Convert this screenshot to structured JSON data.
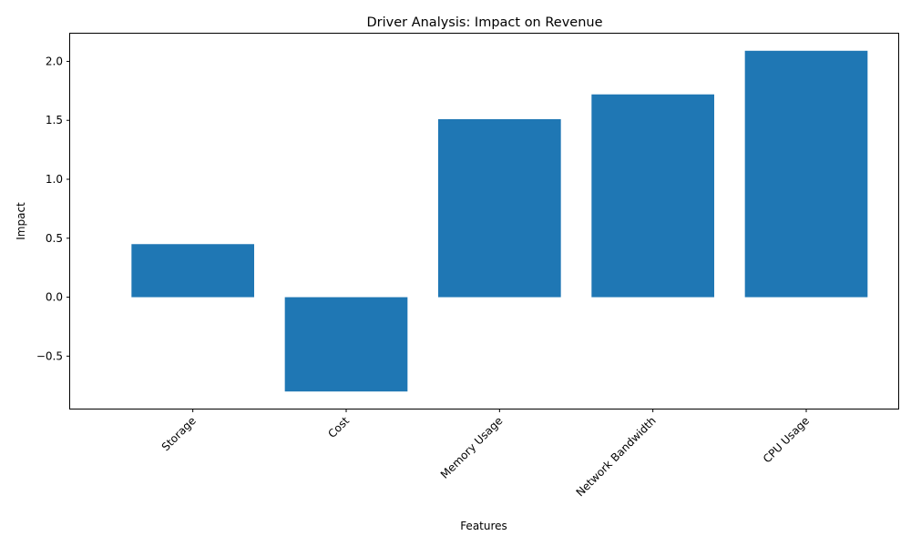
{
  "chart_data": {
    "type": "bar",
    "title": "Driver Analysis: Impact on Revenue",
    "xlabel": "Features",
    "ylabel": "Impact",
    "categories": [
      "Storage",
      "Cost",
      "Memory Usage",
      "Network Bandwidth",
      "CPU Usage"
    ],
    "values": [
      0.45,
      -0.8,
      1.51,
      1.72,
      2.09
    ],
    "ylim": [
      -0.945,
      2.235
    ],
    "yticks": [
      -0.5,
      0.0,
      0.5,
      1.0,
      1.5,
      2.0
    ],
    "ytick_labels": [
      "−0.5",
      "0.0",
      "0.5",
      "1.0",
      "1.5",
      "2.0"
    ],
    "bar_color": "#1f77b4",
    "grid": false,
    "legend": "none"
  }
}
